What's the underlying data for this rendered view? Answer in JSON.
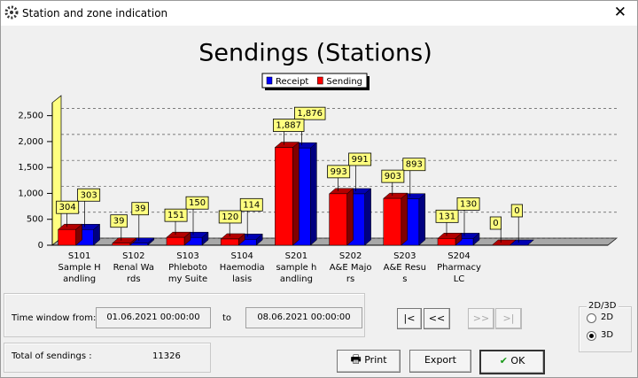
{
  "window": {
    "title": "Station and zone indication"
  },
  "chart_data": {
    "type": "bar3d",
    "title": "Sendings (Stations)",
    "categories": [
      "S101\nSample H\nandling",
      "S102\nRenal Wa\nrds",
      "S103\nPhleboto\nmy Suite",
      "S104\nHaemodia\nlasis",
      "S201\nsample h\nandling",
      "S202\nA&E Majo\nrs",
      "S203\nA&E Resu\ns",
      "S204\nPharmacy\nLC",
      null
    ],
    "series": [
      {
        "name": "Receipt",
        "color": "#0000ff",
        "values": [
          303,
          39,
          150,
          114,
          1876,
          991,
          893,
          130,
          0
        ],
        "value_labels": [
          "303",
          "39",
          "150",
          "114",
          "1,876",
          "991",
          "893",
          "130",
          "0"
        ]
      },
      {
        "name": "Sending",
        "color": "#ff0000",
        "values": [
          304,
          39,
          151,
          120,
          1887,
          993,
          903,
          131,
          0
        ],
        "value_labels": [
          "304",
          "39",
          "151",
          "120",
          "1,887",
          "993",
          "903",
          "131",
          "0"
        ]
      }
    ],
    "ylim": [
      0,
      2750
    ],
    "yticks": [
      0,
      500,
      {
        "value": 1000,
        "label": "1,000"
      },
      {
        "value": 1500,
        "label": "1,500"
      },
      {
        "value": 2000,
        "label": "2,000"
      },
      {
        "value": 2500,
        "label": "2,500"
      }
    ],
    "grid": true,
    "legend": "top"
  },
  "controls": {
    "time_window_label": "Time window from:",
    "from": "01.06.2021 00:00:00",
    "to_label": "to",
    "to": "08.06.2021 00:00:00",
    "nav": [
      "|<",
      "<<",
      ">>",
      ">|"
    ],
    "total_label": "Total of sendings :",
    "total": "11326",
    "view": {
      "title": "2D/3D",
      "options": [
        "2D",
        "3D"
      ],
      "selected": 1
    },
    "buttons": [
      "Print",
      "Export",
      "OK"
    ]
  }
}
